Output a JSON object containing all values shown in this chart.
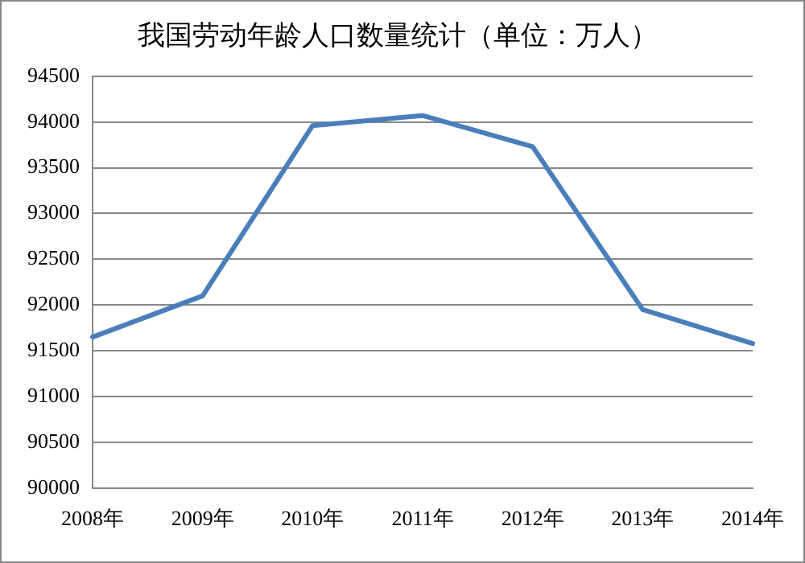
{
  "chart_data": {
    "type": "line",
    "title": "我国劳动年龄人口数量统计（单位：万人）",
    "categories": [
      "2008年",
      "2009年",
      "2010年",
      "2011年",
      "2012年",
      "2013年",
      "2014年"
    ],
    "series": [
      {
        "color": "#4a7ebb",
        "values": [
          91650,
          92100,
          93960,
          94070,
          93730,
          91950,
          91580
        ]
      }
    ],
    "ylim": [
      90000,
      94500
    ],
    "yticks": [
      90000,
      90500,
      91000,
      91500,
      92000,
      92500,
      93000,
      93500,
      94000,
      94500
    ],
    "grid": "y",
    "legend": false,
    "marker": "none",
    "line_style": "solid"
  }
}
